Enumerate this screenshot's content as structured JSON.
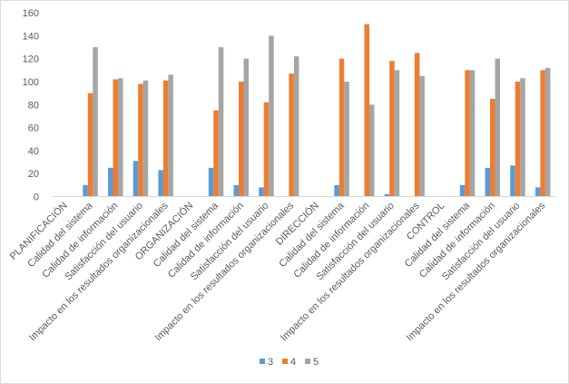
{
  "chart_data": {
    "type": "bar",
    "title": "",
    "xlabel": "",
    "ylabel": "",
    "ylim": [
      0,
      160
    ],
    "yticks": [
      0,
      20,
      40,
      60,
      80,
      100,
      120,
      140,
      160
    ],
    "grid": false,
    "legend_position": "bottom",
    "categories": [
      "PLANIFICACIÓN",
      "Calidad del sistema",
      "Calidad de información",
      "Satisfacción del usuario",
      "Impacto en los resultados organizacionales",
      "ORGANIZACIÓN",
      "Calidad del sistema",
      "Calidad de información",
      "Satisfacción del usuario",
      "Impacto en los resultados organizacionales",
      "DIRECCIÓN",
      "Calidad del sistema",
      "Calidad de información",
      "Satisfacción del usuario",
      "Impacto en los resultados organizacionales",
      "CONTROL",
      "Calidad del sistema",
      "Calidad de información",
      "Satisfacción del usuario",
      "Impacto en los resultados organizacionales"
    ],
    "series": [
      {
        "name": "3",
        "color": "#5b9bd5",
        "values": [
          null,
          10,
          25,
          31,
          23,
          null,
          25,
          10,
          8,
          null,
          null,
          10,
          null,
          2,
          null,
          null,
          10,
          25,
          27,
          8
        ]
      },
      {
        "name": "4",
        "color": "#ed7d31",
        "values": [
          null,
          90,
          102,
          98,
          101,
          null,
          75,
          100,
          82,
          107,
          null,
          120,
          150,
          118,
          125,
          null,
          110,
          85,
          100,
          110
        ]
      },
      {
        "name": "5",
        "color": "#a5a5a5",
        "values": [
          null,
          130,
          103,
          101,
          106,
          null,
          130,
          120,
          140,
          122,
          null,
          100,
          80,
          110,
          105,
          null,
          110,
          120,
          103,
          112
        ]
      }
    ]
  }
}
